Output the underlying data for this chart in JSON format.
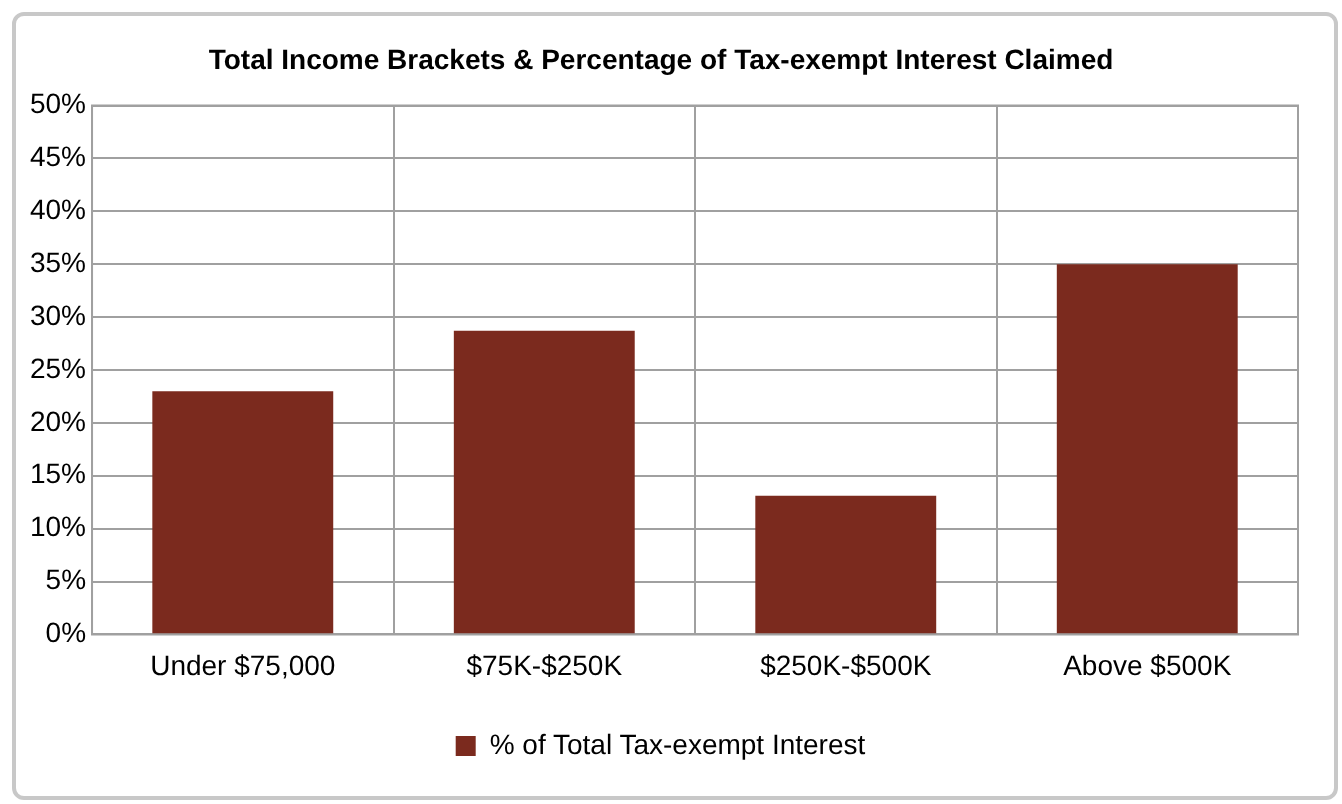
{
  "chart_data": {
    "type": "bar",
    "title": "Total Income Brackets & Percentage of Tax-exempt Interest Claimed",
    "categories": [
      "Under $75,000",
      "$75K-$250K",
      "$250K-$500K",
      "Above $500K"
    ],
    "series": [
      {
        "name": "% of Total Tax-exempt Interest",
        "color": "#7b2a1e",
        "values": [
          23,
          28.7,
          13.1,
          35
        ]
      }
    ],
    "ylim": [
      0,
      50
    ],
    "yticks": [
      {
        "value": 0,
        "label": "0%"
      },
      {
        "value": 5,
        "label": "5%"
      },
      {
        "value": 10,
        "label": "10%"
      },
      {
        "value": 15,
        "label": "15%"
      },
      {
        "value": 20,
        "label": "20%"
      },
      {
        "value": 25,
        "label": "25%"
      },
      {
        "value": 30,
        "label": "30%"
      },
      {
        "value": 35,
        "label": "35%"
      },
      {
        "value": 40,
        "label": "40%"
      },
      {
        "value": 45,
        "label": "45%"
      },
      {
        "value": 50,
        "label": "50%"
      }
    ],
    "grid": true,
    "legend": "bottom"
  }
}
